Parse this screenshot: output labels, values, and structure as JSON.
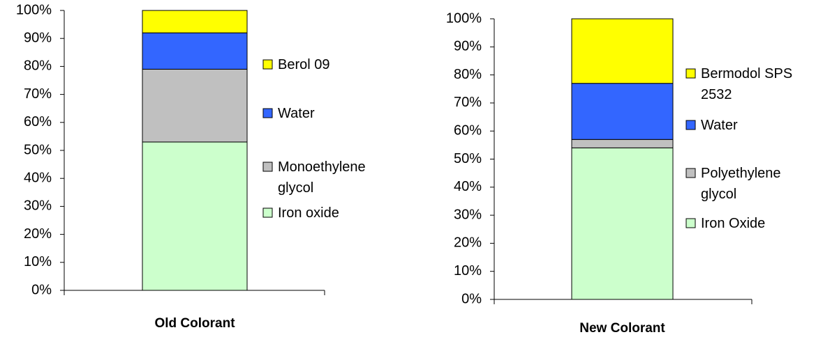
{
  "chart_data": [
    {
      "type": "bar",
      "stacked": true,
      "categories": [
        "Old Colorant"
      ],
      "ylim": [
        0,
        100
      ],
      "yticks": [
        {
          "value": 0,
          "label": "0%"
        },
        {
          "value": 10,
          "label": "10%"
        },
        {
          "value": 20,
          "label": "20%"
        },
        {
          "value": 30,
          "label": "30%"
        },
        {
          "value": 40,
          "label": "40%"
        },
        {
          "value": 50,
          "label": "50%"
        },
        {
          "value": 60,
          "label": "60%"
        },
        {
          "value": 70,
          "label": "70%"
        },
        {
          "value": 80,
          "label": "80%"
        },
        {
          "value": 90,
          "label": "90%"
        },
        {
          "value": 100,
          "label": "100%"
        }
      ],
      "series": [
        {
          "name": "Iron oxide",
          "color": "#ccffcc",
          "values": [
            53
          ]
        },
        {
          "name": "Monoethylene glycol",
          "color": "#c0c0c0",
          "values": [
            26
          ]
        },
        {
          "name": "Water",
          "color": "#3366ff",
          "values": [
            13
          ]
        },
        {
          "name": "Berol 09",
          "color": "#ffff00",
          "values": [
            8
          ]
        }
      ]
    },
    {
      "type": "bar",
      "stacked": true,
      "categories": [
        "New Colorant"
      ],
      "ylim": [
        0,
        100
      ],
      "yticks": [
        {
          "value": 0,
          "label": "0%"
        },
        {
          "value": 10,
          "label": "10%"
        },
        {
          "value": 20,
          "label": "20%"
        },
        {
          "value": 30,
          "label": "30%"
        },
        {
          "value": 40,
          "label": "40%"
        },
        {
          "value": 50,
          "label": "50%"
        },
        {
          "value": 60,
          "label": "60%"
        },
        {
          "value": 70,
          "label": "70%"
        },
        {
          "value": 80,
          "label": "80%"
        },
        {
          "value": 90,
          "label": "90%"
        },
        {
          "value": 100,
          "label": "100%"
        }
      ],
      "series": [
        {
          "name": "Iron Oxide",
          "color": "#ccffcc",
          "values": [
            54
          ]
        },
        {
          "name": "Polyethylene glycol",
          "color": "#c0c0c0",
          "values": [
            3
          ]
        },
        {
          "name": "Water",
          "color": "#3366ff",
          "values": [
            20
          ]
        },
        {
          "name": "Bermodol SPS 2532",
          "color": "#ffff00",
          "values": [
            23
          ]
        }
      ]
    }
  ]
}
